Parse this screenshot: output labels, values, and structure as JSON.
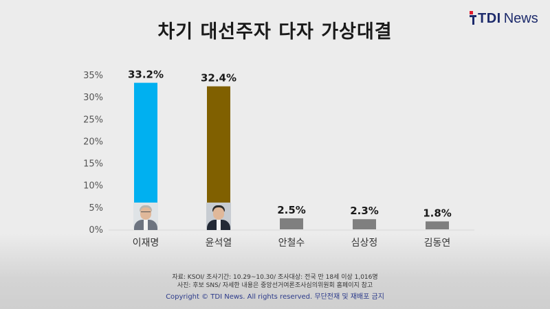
{
  "header": {
    "title": "차기 대선주자 다자 가상대결",
    "logo_tdi": "TDI",
    "logo_news": "News"
  },
  "chart_data": {
    "type": "bar",
    "categories": [
      "이재명",
      "윤석열",
      "안철수",
      "심상정",
      "김동연"
    ],
    "values": [
      33.2,
      32.4,
      2.5,
      2.3,
      1.8
    ],
    "value_labels": [
      "33.2%",
      "32.4%",
      "2.5%",
      "2.3%",
      "1.8%"
    ],
    "colors": [
      "#00b0f0",
      "#806000",
      "#7f7f7f",
      "#7f7f7f",
      "#7f7f7f"
    ],
    "yticks": [
      "0%",
      "5%",
      "10%",
      "15%",
      "20%",
      "25%",
      "30%",
      "35%"
    ],
    "ylim": [
      0,
      35
    ],
    "grid": false,
    "title": "",
    "xlabel": "",
    "ylabel": ""
  },
  "photos": {
    "lee": "candidate-photo",
    "yoon": "candidate-photo"
  },
  "footer": {
    "source_line": "자료: KSOI/ 조사기간: 10.29~10.30/ 조사대상: 전국 만 18세 이상 1,016명",
    "note_line": "사진: 후보 SNS/ 자세한 내용은 중앙선거여론조사심의위원회 홈페이지 참고",
    "copyright": "Copyright © TDI News. All rights reserved.",
    "copyright_ko": "무단전재 및 재배포 금지"
  }
}
